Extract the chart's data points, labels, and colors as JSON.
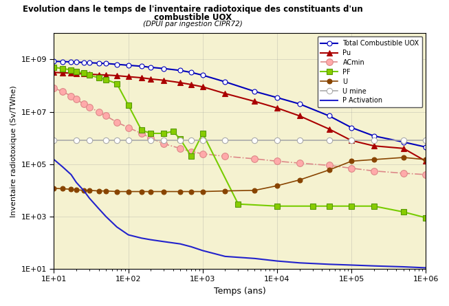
{
  "title_line1": "Evolution dans le temps de l'inventaire radiotoxique des constituants d'un",
  "title_line2": "combustible UOX",
  "subtitle": "(DPUI par ingestion CIPR72)",
  "xlabel": "Temps (ans)",
  "ylabel": "Inventaire radiotoxique (Sv/TWhe)",
  "background_color": "#f5f2d0",
  "xlim": [
    10,
    1000000
  ],
  "ylim": [
    10,
    10000000000
  ],
  "series": {
    "Total": {
      "x": [
        10,
        13,
        17,
        20,
        25,
        30,
        40,
        50,
        70,
        100,
        150,
        200,
        300,
        500,
        700,
        1000,
        2000,
        5000,
        10000,
        20000,
        50000,
        100000,
        200000,
        500000,
        1000000
      ],
      "y": [
        850000000.0,
        830000000.0,
        810000000.0,
        790000000.0,
        770000000.0,
        750000000.0,
        720000000.0,
        700000000.0,
        650000000.0,
        600000000.0,
        550000000.0,
        500000000.0,
        450000000.0,
        380000000.0,
        320000000.0,
        250000000.0,
        140000000.0,
        60000000.0,
        35000000.0,
        20000000.0,
        7000000.0,
        2500000.0,
        1200000.0,
        700000.0,
        450000.0
      ],
      "color": "#0000bb",
      "marker": "o",
      "markerfacecolor": "white",
      "markeredgecolor": "#0000bb",
      "linestyle": "-",
      "linewidth": 1.5,
      "markersize": 5,
      "label": "Total Combustible UOX"
    },
    "Pu": {
      "x": [
        10,
        13,
        17,
        20,
        25,
        30,
        40,
        50,
        70,
        100,
        150,
        200,
        300,
        500,
        700,
        1000,
        2000,
        5000,
        10000,
        20000,
        50000,
        100000,
        200000,
        500000,
        1000000
      ],
      "y": [
        320000000.0,
        310000000.0,
        300000000.0,
        290000000.0,
        280000000.0,
        275000000.0,
        260000000.0,
        255000000.0,
        240000000.0,
        220000000.0,
        200000000.0,
        180000000.0,
        160000000.0,
        130000000.0,
        110000000.0,
        90000000.0,
        50000000.0,
        25000000.0,
        14000000.0,
        7000000.0,
        2200000.0,
        800000.0,
        500000.0,
        400000.0,
        130000.0
      ],
      "color": "#aa0000",
      "marker": "^",
      "markerfacecolor": "#aa0000",
      "markeredgecolor": "#aa0000",
      "linestyle": "-",
      "linewidth": 1.5,
      "markersize": 6,
      "label": "Pu"
    },
    "ACmin": {
      "x": [
        10,
        13,
        17,
        20,
        25,
        30,
        40,
        50,
        70,
        100,
        150,
        200,
        300,
        500,
        700,
        1000,
        2000,
        5000,
        10000,
        20000,
        50000,
        100000,
        200000,
        500000,
        1000000
      ],
      "y": [
        80000000.0,
        60000000.0,
        40000000.0,
        30000000.0,
        20000000.0,
        15000000.0,
        10000000.0,
        7000000.0,
        4000000.0,
        2500000.0,
        1500000.0,
        1000000.0,
        600000.0,
        400000.0,
        300000.0,
        250000.0,
        200000.0,
        160000.0,
        130000.0,
        110000.0,
        90000.0,
        70000.0,
        55000.0,
        45000.0,
        40000.0
      ],
      "color": "#dd8888",
      "marker": "o",
      "markerfacecolor": "#ffaaaa",
      "markeredgecolor": "#dd8888",
      "linestyle": "-.",
      "linewidth": 1.2,
      "markersize": 7,
      "label": "ACmin"
    },
    "PF": {
      "x": [
        10,
        13,
        17,
        20,
        25,
        30,
        40,
        50,
        70,
        100,
        150,
        200,
        300,
        400,
        500,
        700,
        1000,
        3000,
        10000,
        30000,
        50000,
        100000,
        200000,
        500000,
        1000000
      ],
      "y": [
        500000000.0,
        450000000.0,
        400000000.0,
        350000000.0,
        300000000.0,
        250000000.0,
        200000000.0,
        170000000.0,
        120000000.0,
        18000000.0,
        2000000.0,
        1500000.0,
        1500000.0,
        1800000.0,
        900000.0,
        200000.0,
        1500000.0,
        3000.0,
        2500.0,
        2500.0,
        2500.0,
        2500.0,
        2500.0,
        1500.0,
        900.0
      ],
      "color": "#77cc00",
      "marker": "s",
      "markerfacecolor": "#88cc00",
      "markeredgecolor": "#559900",
      "linestyle": "-",
      "linewidth": 1.5,
      "markersize": 6,
      "label": "PF"
    },
    "U": {
      "x": [
        10,
        13,
        17,
        20,
        25,
        30,
        40,
        50,
        70,
        100,
        150,
        200,
        300,
        500,
        700,
        1000,
        2000,
        5000,
        10000,
        20000,
        50000,
        100000,
        200000,
        500000,
        1000000
      ],
      "y": [
        12000.0,
        11500.0,
        11000.0,
        10500.0,
        10000.0,
        10000.0,
        9500.0,
        9500.0,
        9000.0,
        9000.0,
        9000.0,
        9000.0,
        9000.0,
        9000.0,
        9000.0,
        9000.0,
        9500.0,
        10000.0,
        15000.0,
        25000.0,
        60000.0,
        130000.0,
        150000.0,
        180000.0,
        150000.0
      ],
      "color": "#884400",
      "marker": "o",
      "markerfacecolor": "#884400",
      "markeredgecolor": "#884400",
      "linestyle": "-",
      "linewidth": 1.2,
      "markersize": 5,
      "label": "U"
    },
    "U_mine": {
      "x": [
        10,
        20,
        30,
        50,
        70,
        100,
        200,
        300,
        500,
        700,
        1000,
        2000,
        5000,
        10000,
        20000,
        50000,
        100000,
        200000,
        500000,
        1000000
      ],
      "y": [
        800000.0,
        800000.0,
        800000.0,
        800000.0,
        800000.0,
        800000.0,
        800000.0,
        800000.0,
        800000.0,
        800000.0,
        800000.0,
        800000.0,
        800000.0,
        800000.0,
        800000.0,
        800000.0,
        800000.0,
        800000.0,
        800000.0,
        800000.0
      ],
      "color": "#aaaaaa",
      "marker": "o",
      "markerfacecolor": "white",
      "markeredgecolor": "#aaaaaa",
      "linestyle": "-",
      "linewidth": 1.2,
      "markersize": 6,
      "label": "U mine"
    },
    "P_Activation": {
      "x": [
        10,
        13,
        17,
        20,
        25,
        30,
        40,
        50,
        70,
        100,
        150,
        200,
        300,
        500,
        700,
        1000,
        2000,
        5000,
        10000,
        20000,
        50000,
        100000,
        200000,
        500000,
        1000000
      ],
      "y": [
        150000.0,
        80000.0,
        40000.0,
        20000.0,
        10000.0,
        5000.0,
        2000.0,
        1000.0,
        400.0,
        200.0,
        150.0,
        130.0,
        110.0,
        90.0,
        70.0,
        50.0,
        30.0,
        25.0,
        20.0,
        17.0,
        15.0,
        14.0,
        13.0,
        12.0,
        11.0
      ],
      "color": "#2222cc",
      "marker": "None",
      "markerfacecolor": "#2222cc",
      "markeredgecolor": "#2222cc",
      "linestyle": "-",
      "linewidth": 1.5,
      "markersize": 4,
      "label": "P Activation"
    }
  }
}
